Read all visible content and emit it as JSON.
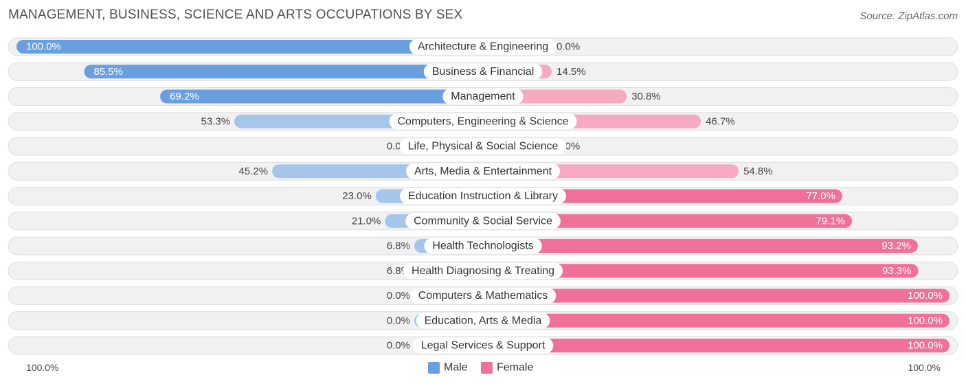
{
  "title": "MANAGEMENT, BUSINESS, SCIENCE AND ARTS OCCUPATIONS BY SEX",
  "source": "Source: ZipAtlas.com",
  "colors": {
    "male_strong": "#6a9fdf",
    "male_light": "#a6c5ea",
    "female_strong": "#f07099",
    "female_light": "#f7a9c1",
    "track": "#f1f1f1",
    "track_border": "#dedede"
  },
  "chart_data": {
    "type": "bar",
    "orientation": "horizontal-diverging",
    "title": "MANAGEMENT, BUSINESS, SCIENCE AND ARTS OCCUPATIONS BY SEX",
    "categories": [
      "Architecture & Engineering",
      "Business & Financial",
      "Management",
      "Computers, Engineering & Science",
      "Life, Physical & Social Science",
      "Arts, Media & Entertainment",
      "Education Instruction & Library",
      "Community & Social Service",
      "Health Technologists",
      "Health Diagnosing & Treating",
      "Computers & Mathematics",
      "Education, Arts & Media",
      "Legal Services & Support"
    ],
    "series": [
      {
        "name": "Male",
        "values": [
          100.0,
          85.5,
          69.2,
          53.3,
          0.0,
          45.2,
          23.0,
          21.0,
          6.8,
          6.8,
          0.0,
          0.0,
          0.0
        ],
        "labels": [
          "100.0%",
          "85.5%",
          "69.2%",
          "53.3%",
          "0.0%",
          "45.2%",
          "23.0%",
          "21.0%",
          "6.8%",
          "6.8%",
          "0.0%",
          "0.0%",
          "0.0%"
        ]
      },
      {
        "name": "Female",
        "values": [
          0.0,
          14.5,
          30.8,
          46.7,
          0.0,
          54.8,
          77.0,
          79.1,
          93.2,
          93.3,
          100.0,
          100.0,
          100.0
        ],
        "labels": [
          "0.0%",
          "14.5%",
          "30.8%",
          "46.7%",
          "0.0%",
          "54.8%",
          "77.0%",
          "79.1%",
          "93.2%",
          "93.3%",
          "100.0%",
          "100.0%",
          "100.0%"
        ]
      }
    ],
    "xlim": [
      -100,
      100
    ],
    "axis_left_label": "100.0%",
    "axis_right_label": "100.0%",
    "legend": {
      "position": "bottom-center",
      "items": [
        "Male",
        "Female"
      ]
    }
  }
}
